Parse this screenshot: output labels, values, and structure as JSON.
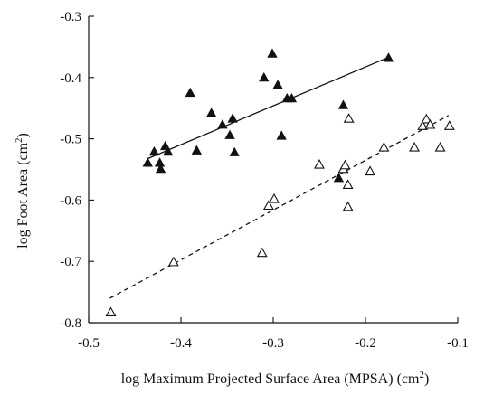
{
  "chart_data": {
    "type": "scatter",
    "xlabel": "log Maximum Projected Surface Area (MPSA) (cm",
    "xlabel_sup": "2",
    "xlabel_end": ")",
    "ylabel": "log Foot Area (cm",
    "ylabel_sup": "2",
    "ylabel_end": ")",
    "xlim": [
      -0.5,
      -0.1
    ],
    "ylim": [
      -0.8,
      -0.3
    ],
    "xticks": [
      -0.5,
      -0.4,
      -0.3,
      -0.2,
      -0.1
    ],
    "xtick_labels": [
      "-0.5",
      "-0.4",
      "-0.3",
      "-0.2",
      "-0.1"
    ],
    "yticks": [
      -0.8,
      -0.7,
      -0.6,
      -0.5,
      -0.4,
      -0.3
    ],
    "ytick_labels": [
      "-0.8",
      "-0.7",
      "-0.6",
      "-0.5",
      "-0.4",
      "-0.3"
    ],
    "grid": false,
    "series": [
      {
        "marker": "filled-triangle",
        "color": "#111111",
        "fit": {
          "style": "solid",
          "x": [
            -0.437,
            -0.175
          ],
          "y": [
            -0.533,
            -0.367
          ]
        },
        "points": [
          {
            "x": -0.436,
            "y": -0.539
          },
          {
            "x": -0.429,
            "y": -0.521
          },
          {
            "x": -0.423,
            "y": -0.539
          },
          {
            "x": -0.422,
            "y": -0.549
          },
          {
            "x": -0.417,
            "y": -0.512
          },
          {
            "x": -0.414,
            "y": -0.521
          },
          {
            "x": -0.39,
            "y": -0.425
          },
          {
            "x": -0.383,
            "y": -0.519
          },
          {
            "x": -0.367,
            "y": -0.458
          },
          {
            "x": -0.355,
            "y": -0.477
          },
          {
            "x": -0.347,
            "y": -0.494
          },
          {
            "x": -0.344,
            "y": -0.467
          },
          {
            "x": -0.342,
            "y": -0.522
          },
          {
            "x": -0.31,
            "y": -0.4
          },
          {
            "x": -0.301,
            "y": -0.361
          },
          {
            "x": -0.295,
            "y": -0.412
          },
          {
            "x": -0.291,
            "y": -0.495
          },
          {
            "x": -0.285,
            "y": -0.434
          },
          {
            "x": -0.28,
            "y": -0.434
          },
          {
            "x": -0.229,
            "y": -0.564
          },
          {
            "x": -0.224,
            "y": -0.445
          },
          {
            "x": -0.175,
            "y": -0.368
          }
        ]
      },
      {
        "marker": "open-triangle",
        "color": "#111111",
        "fit": {
          "style": "dashed",
          "x": [
            -0.477,
            -0.11
          ],
          "y": [
            -0.76,
            -0.462
          ]
        },
        "points": [
          {
            "x": -0.476,
            "y": -0.783
          },
          {
            "x": -0.408,
            "y": -0.701
          },
          {
            "x": -0.312,
            "y": -0.686
          },
          {
            "x": -0.305,
            "y": -0.609
          },
          {
            "x": -0.299,
            "y": -0.598
          },
          {
            "x": -0.25,
            "y": -0.542
          },
          {
            "x": -0.224,
            "y": -0.549
          },
          {
            "x": -0.222,
            "y": -0.543
          },
          {
            "x": -0.219,
            "y": -0.575
          },
          {
            "x": -0.219,
            "y": -0.611
          },
          {
            "x": -0.218,
            "y": -0.467
          },
          {
            "x": -0.195,
            "y": -0.553
          },
          {
            "x": -0.18,
            "y": -0.514
          },
          {
            "x": -0.147,
            "y": -0.514
          },
          {
            "x": -0.138,
            "y": -0.479
          },
          {
            "x": -0.134,
            "y": -0.468
          },
          {
            "x": -0.13,
            "y": -0.477
          },
          {
            "x": -0.119,
            "y": -0.514
          },
          {
            "x": -0.109,
            "y": -0.479
          }
        ]
      }
    ]
  }
}
